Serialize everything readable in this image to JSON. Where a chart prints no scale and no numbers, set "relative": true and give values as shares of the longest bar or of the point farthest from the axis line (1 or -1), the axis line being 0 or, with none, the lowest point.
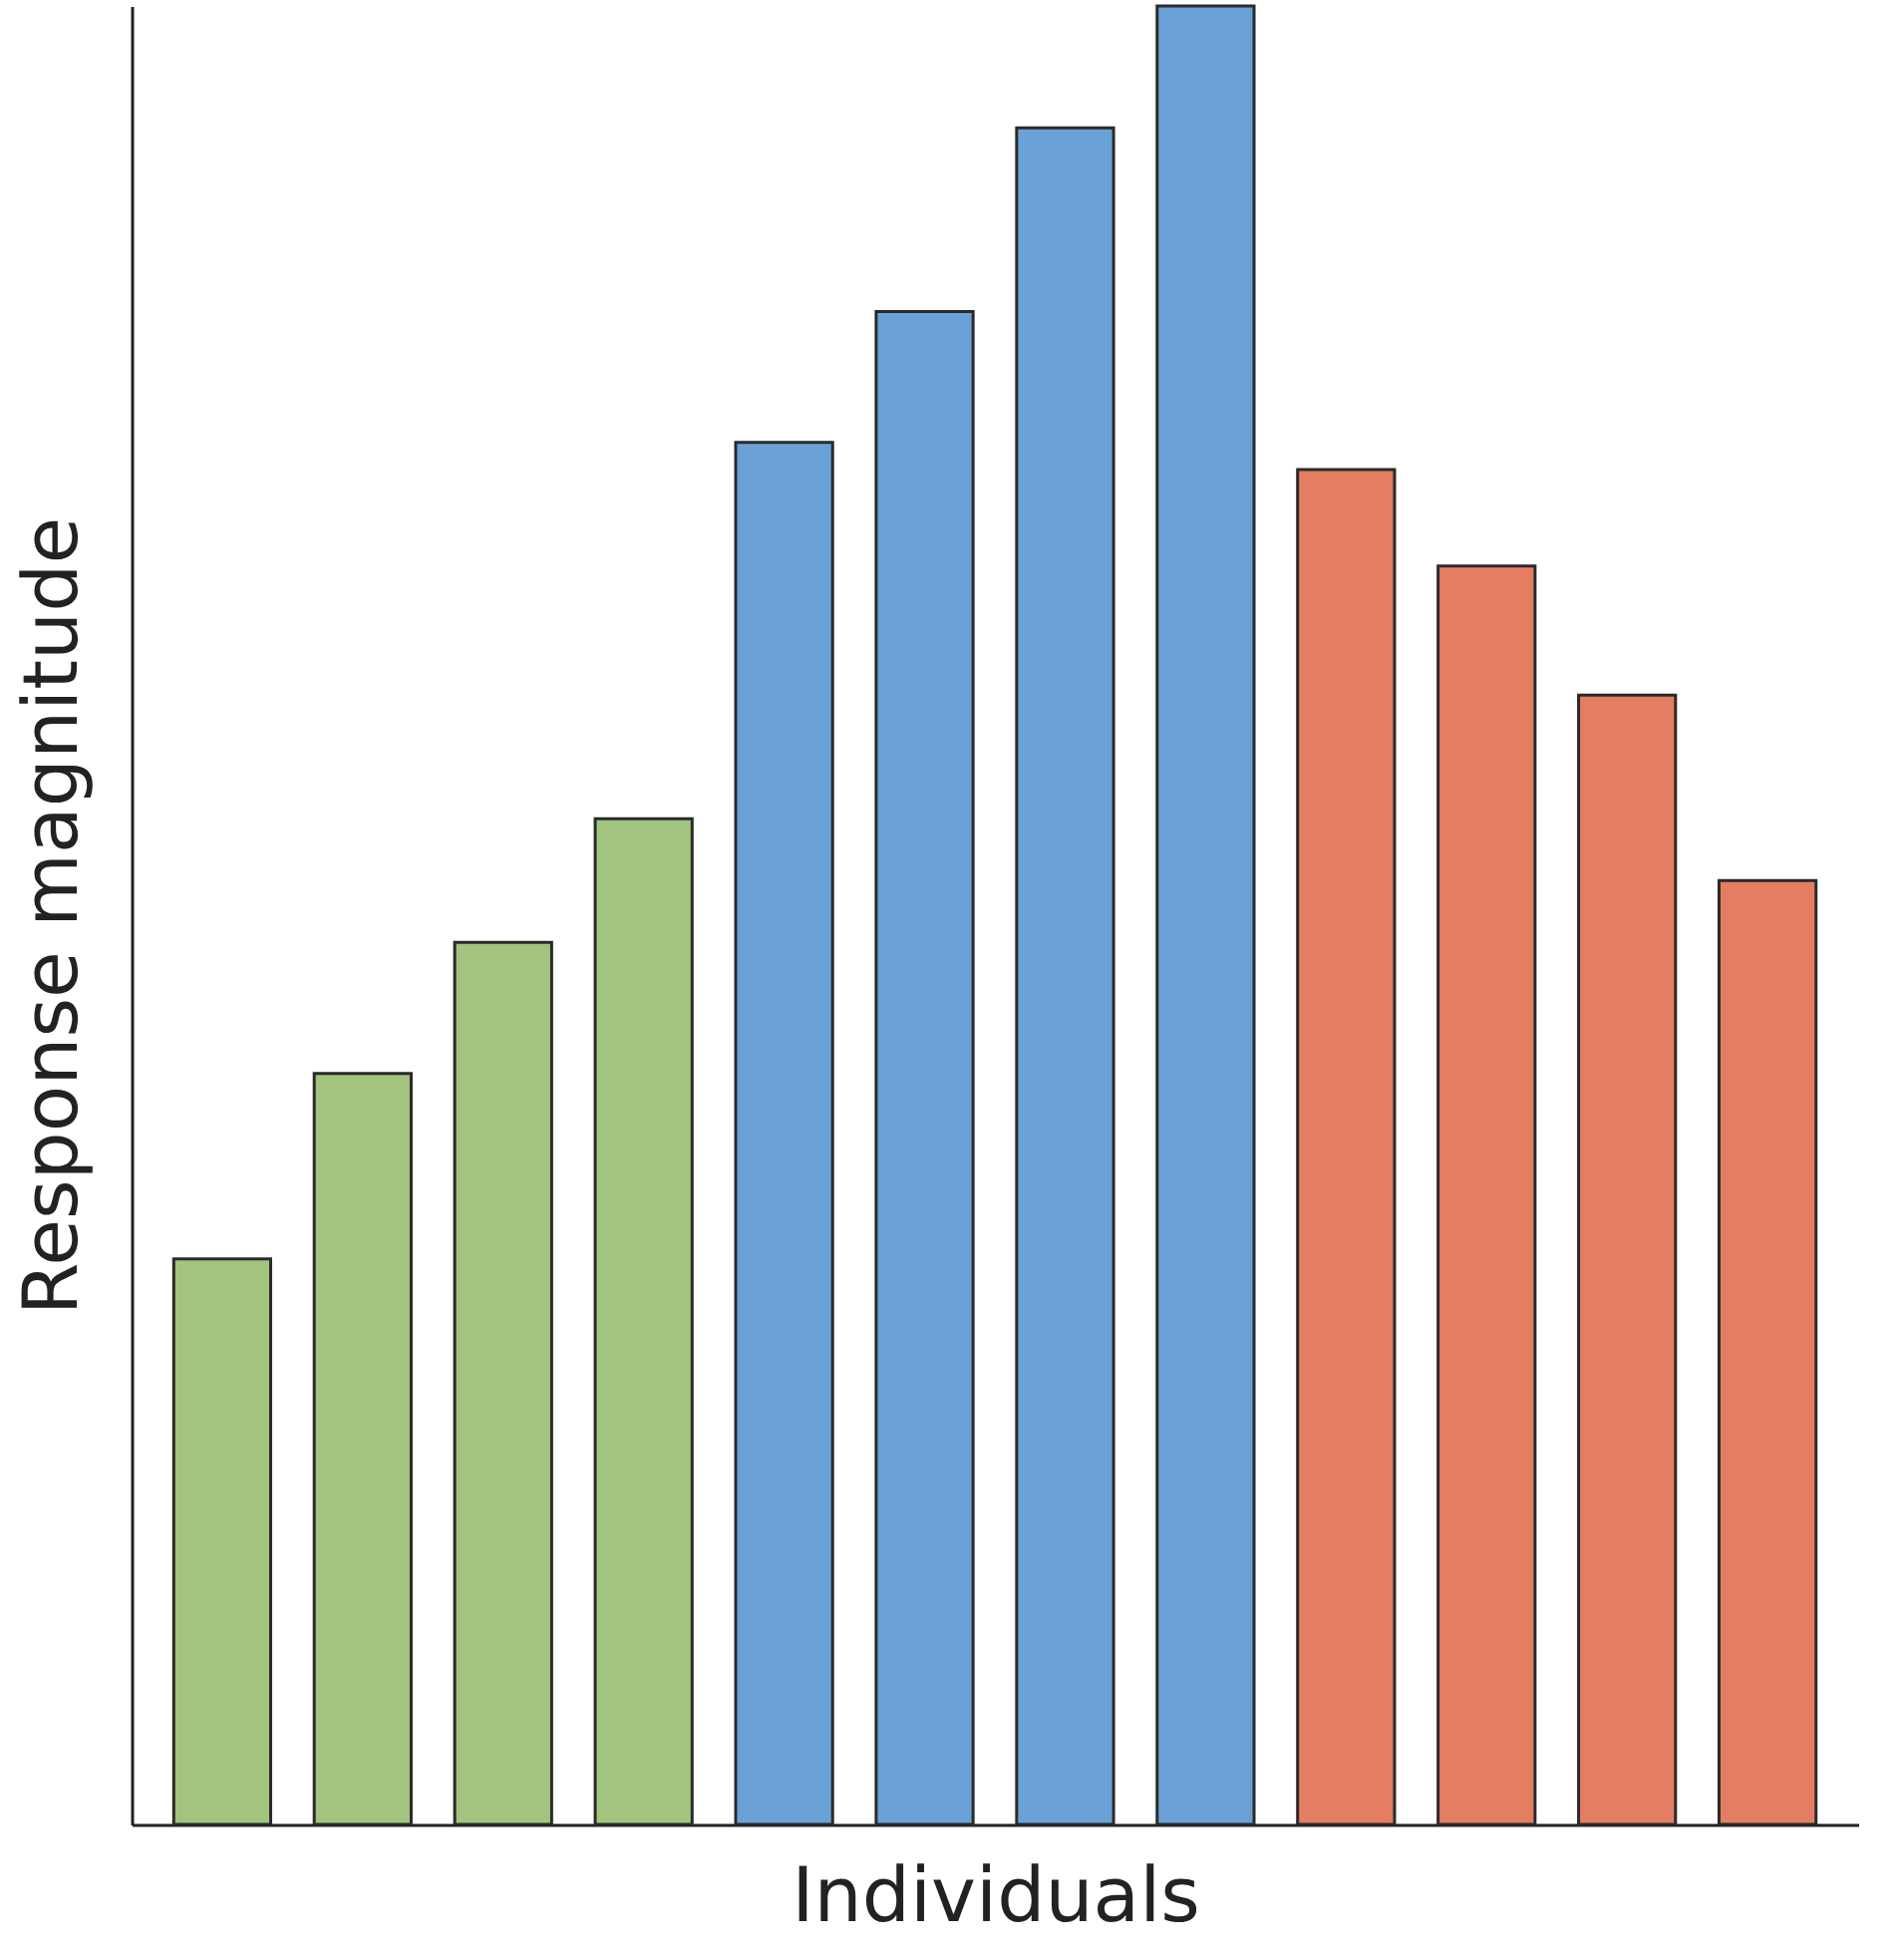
{
  "chart_data": {
    "type": "bar",
    "relative": true,
    "xlabel": "Individuals",
    "ylabel": "Response magnitude",
    "categories": [
      null,
      null,
      null,
      null,
      null,
      null,
      null,
      null,
      null,
      null,
      null,
      null
    ],
    "values": [
      0.311,
      0.413,
      0.485,
      0.553,
      0.76,
      0.832,
      0.933,
      1,
      0.745,
      0.692,
      0.621,
      0.519
    ],
    "colors": [
      "#a3c47f",
      "#a3c47f",
      "#a3c47f",
      "#a3c47f",
      "#6aa2d8",
      "#6aa2d8",
      "#6aa2d8",
      "#6aa2d8",
      "#e57d62",
      "#e57d62",
      "#e57d62",
      "#e57d62"
    ]
  }
}
